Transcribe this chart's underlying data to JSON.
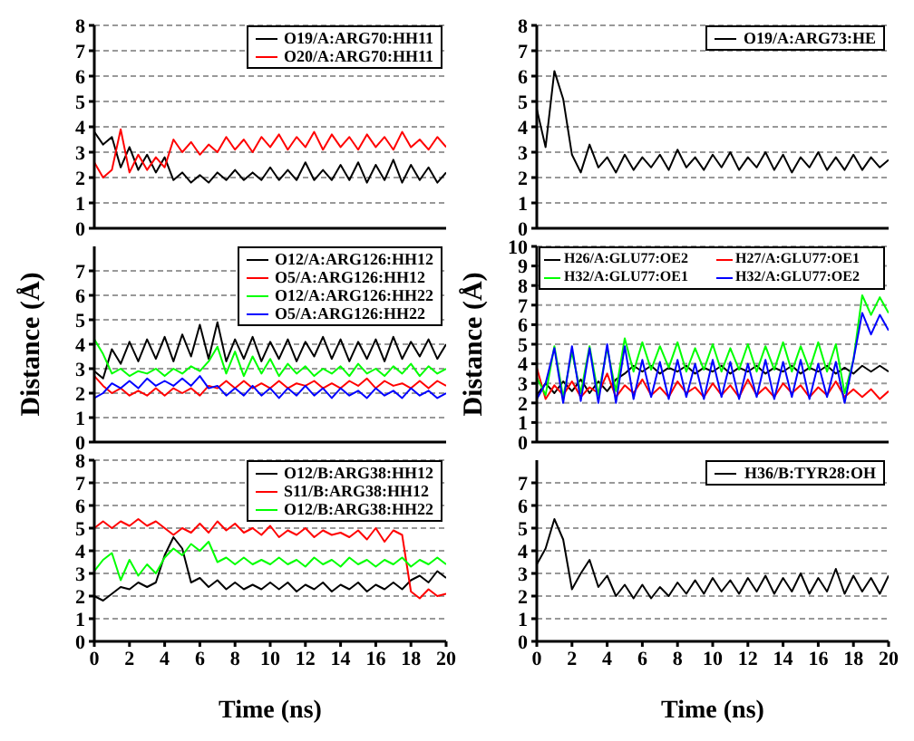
{
  "chart_data": [
    {
      "type": "line",
      "x": [
        0,
        0.5,
        1,
        1.5,
        2,
        2.5,
        3,
        3.5,
        4,
        4.5,
        5,
        5.5,
        6,
        6.5,
        7,
        7.5,
        8,
        8.5,
        9,
        9.5,
        10,
        10.5,
        11,
        11.5,
        12,
        12.5,
        13,
        13.5,
        14,
        14.5,
        15,
        15.5,
        16,
        16.5,
        17,
        17.5,
        18,
        18.5,
        19,
        19.5,
        20
      ],
      "xlim": [
        0,
        20
      ],
      "xticks": [
        0,
        2,
        4,
        6,
        8,
        10,
        12,
        14,
        16,
        18,
        20
      ],
      "ylim": [
        0,
        8
      ],
      "yticks": [
        0,
        1,
        2,
        3,
        4,
        5,
        6,
        7,
        8
      ],
      "grid": "y",
      "legend": "top right",
      "tick_labels": "y",
      "marker": "none",
      "line_style": "solid",
      "series": [
        {
          "name": "O19/A:ARG70:HH11",
          "color": "#000000",
          "values": [
            3.8,
            3.3,
            3.6,
            2.4,
            3.2,
            2.3,
            2.9,
            2.2,
            2.8,
            1.9,
            2.2,
            1.8,
            2.1,
            1.8,
            2.2,
            1.9,
            2.3,
            1.9,
            2.2,
            1.9,
            2.4,
            1.9,
            2.3,
            1.9,
            2.6,
            1.9,
            2.3,
            1.9,
            2.5,
            1.9,
            2.6,
            1.8,
            2.5,
            1.9,
            2.7,
            1.8,
            2.5,
            1.9,
            2.4,
            1.8,
            2.2
          ]
        },
        {
          "name": "O20/A:ARG70:HH11",
          "color": "#ff0000",
          "values": [
            2.6,
            2.0,
            2.3,
            3.9,
            2.2,
            2.9,
            2.3,
            2.8,
            2.4,
            3.5,
            3.0,
            3.4,
            2.9,
            3.3,
            3.0,
            3.6,
            3.1,
            3.5,
            3.0,
            3.6,
            3.2,
            3.7,
            3.1,
            3.6,
            3.2,
            3.8,
            3.1,
            3.7,
            3.2,
            3.6,
            3.1,
            3.7,
            3.2,
            3.6,
            3.1,
            3.8,
            3.2,
            3.5,
            3.1,
            3.6,
            3.2
          ]
        }
      ]
    },
    {
      "type": "line",
      "x": [
        0,
        0.5,
        1,
        1.5,
        2,
        2.5,
        3,
        3.5,
        4,
        4.5,
        5,
        5.5,
        6,
        6.5,
        7,
        7.5,
        8,
        8.5,
        9,
        9.5,
        10,
        10.5,
        11,
        11.5,
        12,
        12.5,
        13,
        13.5,
        14,
        14.5,
        15,
        15.5,
        16,
        16.5,
        17,
        17.5,
        18,
        18.5,
        19,
        19.5,
        20
      ],
      "xlim": [
        0,
        20
      ],
      "xticks": [
        0,
        2,
        4,
        6,
        8,
        10,
        12,
        14,
        16,
        18,
        20
      ],
      "ylim": [
        0,
        8
      ],
      "yticks": [
        0,
        1,
        2,
        3,
        4,
        5,
        6,
        7,
        8
      ],
      "grid": "y",
      "legend": "top right",
      "tick_labels": "y",
      "marker": "none",
      "line_style": "solid",
      "series": [
        {
          "name": "O19/A:ARG73:HE",
          "color": "#000000",
          "values": [
            4.7,
            3.2,
            6.2,
            5.1,
            2.9,
            2.2,
            3.3,
            2.4,
            2.8,
            2.2,
            2.9,
            2.3,
            2.8,
            2.4,
            2.9,
            2.3,
            3.1,
            2.4,
            2.8,
            2.3,
            2.9,
            2.4,
            3.0,
            2.3,
            2.8,
            2.4,
            3.0,
            2.3,
            2.9,
            2.2,
            2.8,
            2.4,
            3.0,
            2.3,
            2.8,
            2.3,
            2.9,
            2.3,
            2.8,
            2.4,
            2.7
          ]
        }
      ]
    },
    {
      "type": "line",
      "ylabel": "Distance (Å)",
      "x": [
        0,
        0.5,
        1,
        1.5,
        2,
        2.5,
        3,
        3.5,
        4,
        4.5,
        5,
        5.5,
        6,
        6.5,
        7,
        7.5,
        8,
        8.5,
        9,
        9.5,
        10,
        10.5,
        11,
        11.5,
        12,
        12.5,
        13,
        13.5,
        14,
        14.5,
        15,
        15.5,
        16,
        16.5,
        17,
        17.5,
        18,
        18.5,
        19,
        19.5,
        20
      ],
      "xlim": [
        0,
        20
      ],
      "xticks": [
        0,
        2,
        4,
        6,
        8,
        10,
        12,
        14,
        16,
        18,
        20
      ],
      "ylim": [
        0,
        8
      ],
      "yticks": [
        0,
        1,
        2,
        3,
        4,
        5,
        6,
        7
      ],
      "grid": "y",
      "legend": "top right",
      "tick_labels": "y",
      "marker": "none",
      "line_style": "solid",
      "series": [
        {
          "name": "O12/A:ARG126:HH12",
          "color": "#000000",
          "values": [
            2.9,
            2.6,
            3.8,
            3.2,
            4.1,
            3.3,
            4.2,
            3.4,
            4.3,
            3.3,
            4.4,
            3.5,
            4.8,
            3.4,
            4.9,
            3.3,
            4.2,
            3.4,
            4.3,
            3.3,
            4.1,
            3.4,
            4.2,
            3.3,
            4.1,
            3.5,
            4.3,
            3.4,
            4.2,
            3.3,
            4.1,
            3.4,
            4.2,
            3.3,
            4.3,
            3.4,
            4.1,
            3.5,
            4.2,
            3.4,
            4.0
          ]
        },
        {
          "name": "O5/A:ARG126:HH12",
          "color": "#ff0000",
          "values": [
            2.7,
            2.3,
            2.0,
            2.2,
            1.9,
            2.1,
            1.9,
            2.2,
            1.9,
            2.2,
            2.0,
            2.2,
            1.9,
            2.3,
            2.2,
            2.5,
            2.2,
            2.5,
            2.2,
            2.4,
            2.2,
            2.5,
            2.2,
            2.4,
            2.3,
            2.5,
            2.2,
            2.4,
            2.2,
            2.5,
            2.3,
            2.6,
            2.2,
            2.5,
            2.3,
            2.4,
            2.2,
            2.5,
            2.2,
            2.5,
            2.3
          ]
        },
        {
          "name": "O12/A:ARG126:HH22",
          "color": "#00ff00",
          "values": [
            4.2,
            3.6,
            2.8,
            3.0,
            2.7,
            2.9,
            2.8,
            3.0,
            2.7,
            3.0,
            2.8,
            3.1,
            2.9,
            3.3,
            3.9,
            2.8,
            3.7,
            2.7,
            3.5,
            2.8,
            3.4,
            2.7,
            3.2,
            2.8,
            3.1,
            2.7,
            3.0,
            2.8,
            3.1,
            2.7,
            3.2,
            2.8,
            3.0,
            2.7,
            3.1,
            2.8,
            3.2,
            2.7,
            3.1,
            2.8,
            3.0
          ]
        },
        {
          "name": "O5/A:ARG126:HH22",
          "color": "#0000ff",
          "values": [
            1.8,
            2.0,
            2.4,
            2.2,
            2.5,
            2.2,
            2.6,
            2.3,
            2.5,
            2.3,
            2.6,
            2.3,
            2.7,
            2.2,
            2.3,
            1.9,
            2.2,
            1.9,
            2.3,
            1.9,
            2.2,
            1.8,
            2.2,
            1.9,
            2.3,
            1.9,
            2.2,
            1.8,
            2.2,
            1.9,
            2.1,
            1.8,
            2.2,
            1.9,
            2.1,
            1.8,
            2.2,
            1.9,
            2.1,
            1.8,
            2.0
          ]
        }
      ]
    },
    {
      "type": "line",
      "ylabel": "Distance (Å)",
      "x": [
        0,
        0.5,
        1,
        1.5,
        2,
        2.5,
        3,
        3.5,
        4,
        4.5,
        5,
        5.5,
        6,
        6.5,
        7,
        7.5,
        8,
        8.5,
        9,
        9.5,
        10,
        10.5,
        11,
        11.5,
        12,
        12.5,
        13,
        13.5,
        14,
        14.5,
        15,
        15.5,
        16,
        16.5,
        17,
        17.5,
        18,
        18.5,
        19,
        19.5,
        20
      ],
      "xlim": [
        0,
        20
      ],
      "xticks": [
        0,
        2,
        4,
        6,
        8,
        10,
        12,
        14,
        16,
        18,
        20
      ],
      "ylim": [
        0,
        10
      ],
      "yticks": [
        0,
        1,
        2,
        3,
        4,
        5,
        6,
        7,
        8,
        9,
        10
      ],
      "grid": "y",
      "legend": "top",
      "tick_labels": "y",
      "marker": "none",
      "line_style": "solid",
      "series": [
        {
          "name": "H26/A:GLU77:OE2",
          "color": "#000000",
          "values": [
            2.4,
            3.0,
            2.5,
            3.1,
            2.6,
            3.2,
            2.5,
            3.1,
            2.6,
            3.2,
            3.5,
            3.9,
            3.6,
            3.9,
            3.5,
            3.8,
            3.6,
            3.9,
            3.5,
            3.8,
            3.6,
            3.9,
            3.5,
            3.8,
            3.6,
            3.9,
            3.5,
            3.8,
            3.6,
            3.9,
            3.5,
            3.8,
            3.6,
            3.9,
            3.5,
            3.8,
            3.5,
            3.9,
            3.6,
            3.9,
            3.6
          ]
        },
        {
          "name": "H27/A:GLU77:OE1",
          "color": "#ff0000",
          "values": [
            3.8,
            2.2,
            2.9,
            2.4,
            3.1,
            2.3,
            2.8,
            2.5,
            3.5,
            2.3,
            2.9,
            2.5,
            3.2,
            2.4,
            2.8,
            2.3,
            3.1,
            2.5,
            2.8,
            2.3,
            3.0,
            2.4,
            2.9,
            2.3,
            3.2,
            2.4,
            2.8,
            2.3,
            3.0,
            2.5,
            2.9,
            2.3,
            2.8,
            2.4,
            3.1,
            2.3,
            2.7,
            2.3,
            2.7,
            2.2,
            2.6
          ]
        },
        {
          "name": "H32/A:GLU77:OE1",
          "color": "#00ff00",
          "values": [
            3.3,
            2.4,
            4.9,
            2.3,
            4.6,
            2.5,
            4.9,
            2.4,
            4.8,
            2.6,
            5.3,
            3.6,
            5.1,
            3.7,
            4.9,
            3.8,
            5.1,
            3.6,
            4.8,
            3.7,
            5.0,
            3.6,
            4.8,
            3.7,
            5.0,
            3.6,
            4.9,
            3.7,
            5.1,
            3.6,
            4.9,
            3.7,
            5.1,
            3.6,
            5.0,
            2.5,
            4.2,
            7.5,
            6.5,
            7.4,
            6.6
          ]
        },
        {
          "name": "H32/A:GLU77:OE2",
          "color": "#0000ff",
          "values": [
            2.2,
            3.0,
            4.8,
            2.0,
            4.9,
            2.1,
            4.8,
            2.0,
            5.0,
            2.0,
            4.9,
            2.2,
            4.2,
            2.3,
            4.1,
            2.2,
            4.2,
            2.3,
            4.0,
            2.2,
            4.2,
            2.3,
            4.1,
            2.2,
            4.0,
            2.3,
            4.2,
            2.2,
            4.1,
            2.3,
            4.2,
            2.2,
            4.0,
            2.3,
            4.1,
            2.0,
            4.2,
            6.6,
            5.5,
            6.5,
            5.7
          ]
        }
      ]
    },
    {
      "type": "line",
      "xlabel": "Time (ns)",
      "x": [
        0,
        0.5,
        1,
        1.5,
        2,
        2.5,
        3,
        3.5,
        4,
        4.5,
        5,
        5.5,
        6,
        6.5,
        7,
        7.5,
        8,
        8.5,
        9,
        9.5,
        10,
        10.5,
        11,
        11.5,
        12,
        12.5,
        13,
        13.5,
        14,
        14.5,
        15,
        15.5,
        16,
        16.5,
        17,
        17.5,
        18,
        18.5,
        19,
        19.5,
        20
      ],
      "xlim": [
        0,
        20
      ],
      "xticks": [
        0,
        2,
        4,
        6,
        8,
        10,
        12,
        14,
        16,
        18,
        20
      ],
      "ylim": [
        0,
        8
      ],
      "yticks": [
        0,
        1,
        2,
        3,
        4,
        5,
        6,
        7,
        8
      ],
      "grid": "y",
      "legend": "top right",
      "marker": "none",
      "line_style": "solid",
      "series": [
        {
          "name": "O12/B:ARG38:HH12",
          "color": "#000000",
          "values": [
            2.0,
            1.8,
            2.1,
            2.4,
            2.3,
            2.6,
            2.4,
            2.6,
            3.8,
            4.6,
            4.1,
            2.6,
            2.8,
            2.4,
            2.7,
            2.3,
            2.6,
            2.3,
            2.5,
            2.3,
            2.6,
            2.3,
            2.6,
            2.2,
            2.5,
            2.3,
            2.6,
            2.2,
            2.5,
            2.3,
            2.6,
            2.2,
            2.5,
            2.3,
            2.6,
            2.3,
            2.7,
            2.9,
            2.6,
            3.1,
            2.8
          ]
        },
        {
          "name": "S11/B:ARG38:HH12",
          "color": "#ff0000",
          "values": [
            5.0,
            5.3,
            5.0,
            5.3,
            5.1,
            5.4,
            5.1,
            5.3,
            5.0,
            4.7,
            5.0,
            4.8,
            5.2,
            4.8,
            5.3,
            4.9,
            5.2,
            4.8,
            5.0,
            4.7,
            5.1,
            4.6,
            4.9,
            4.7,
            5.0,
            4.6,
            4.9,
            4.7,
            4.8,
            4.6,
            4.9,
            4.5,
            5.0,
            4.4,
            4.9,
            4.7,
            2.2,
            1.9,
            2.3,
            2.0,
            2.1
          ]
        },
        {
          "name": "O12/B:ARG38:HH22",
          "color": "#00ff00",
          "values": [
            3.1,
            3.6,
            3.9,
            2.7,
            3.6,
            2.9,
            3.4,
            3.0,
            3.7,
            4.1,
            3.8,
            4.3,
            4.0,
            4.4,
            3.5,
            3.7,
            3.4,
            3.7,
            3.4,
            3.6,
            3.4,
            3.7,
            3.4,
            3.6,
            3.3,
            3.7,
            3.4,
            3.6,
            3.3,
            3.7,
            3.4,
            3.6,
            3.3,
            3.6,
            3.4,
            3.7,
            3.3,
            3.6,
            3.4,
            3.7,
            3.4
          ]
        }
      ]
    },
    {
      "type": "line",
      "xlabel": "Time (ns)",
      "x": [
        0,
        0.5,
        1,
        1.5,
        2,
        2.5,
        3,
        3.5,
        4,
        4.5,
        5,
        5.5,
        6,
        6.5,
        7,
        7.5,
        8,
        8.5,
        9,
        9.5,
        10,
        10.5,
        11,
        11.5,
        12,
        12.5,
        13,
        13.5,
        14,
        14.5,
        15,
        15.5,
        16,
        16.5,
        17,
        17.5,
        18,
        18.5,
        19,
        19.5,
        20
      ],
      "xlim": [
        0,
        20
      ],
      "xticks": [
        0,
        2,
        4,
        6,
        8,
        10,
        12,
        14,
        16,
        18,
        20
      ],
      "ylim": [
        0,
        8
      ],
      "yticks": [
        0,
        1,
        2,
        3,
        4,
        5,
        6,
        7
      ],
      "grid": "y",
      "legend": "top right",
      "marker": "none",
      "line_style": "solid",
      "series": [
        {
          "name": "H36/B:TYR28:OH",
          "color": "#000000",
          "values": [
            3.4,
            4.1,
            5.4,
            4.5,
            2.3,
            3.0,
            3.6,
            2.4,
            2.9,
            2.0,
            2.5,
            1.9,
            2.5,
            1.9,
            2.4,
            2.0,
            2.6,
            2.1,
            2.7,
            2.1,
            2.8,
            2.2,
            2.7,
            2.1,
            2.8,
            2.2,
            2.9,
            2.1,
            2.8,
            2.2,
            3.0,
            2.1,
            2.8,
            2.2,
            3.2,
            2.1,
            2.9,
            2.2,
            2.8,
            2.1,
            2.9
          ]
        }
      ]
    }
  ]
}
